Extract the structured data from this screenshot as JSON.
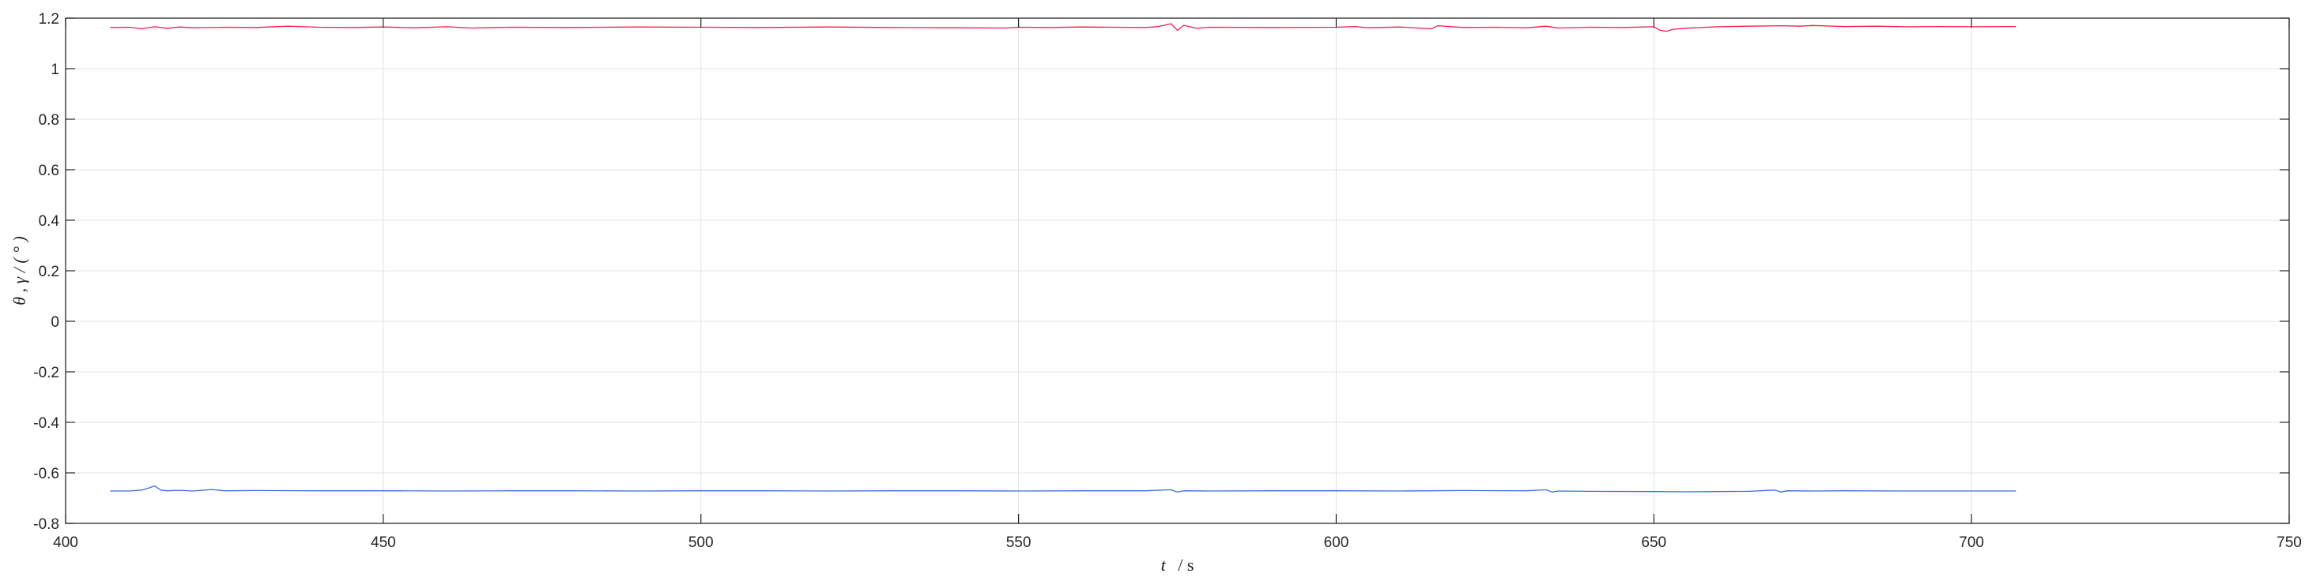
{
  "chart_data": {
    "type": "line",
    "xlabel": "t / s",
    "xlabel_var": "t",
    "xlabel_unit": "/ s",
    "ylabel": "θ , γ / ( ° )",
    "xlim": [
      400,
      750
    ],
    "ylim": [
      -0.8,
      1.2
    ],
    "xticks": [
      400,
      450,
      500,
      550,
      600,
      650,
      700,
      750
    ],
    "xtick_labels": [
      "400",
      "450",
      "500",
      "550",
      "600",
      "650",
      "700",
      "750"
    ],
    "yticks": [
      -0.8,
      -0.6,
      -0.4,
      -0.2,
      0,
      0.2,
      0.4,
      0.6,
      0.8,
      1,
      1.2
    ],
    "ytick_labels": [
      "-0.8",
      "-0.6",
      "-0.4",
      "-0.2",
      "0",
      "0.2",
      "0.4",
      "0.6",
      "0.8",
      "1",
      "1.2"
    ],
    "grid": true,
    "series": [
      {
        "color": "#ff1a4a",
        "x": [
          407,
          410,
          412,
          414,
          416,
          418,
          420,
          425,
          430,
          435,
          440,
          445,
          450,
          455,
          460,
          464,
          470,
          480,
          490,
          500,
          510,
          520,
          530,
          540,
          548,
          550,
          555,
          560,
          565,
          570,
          572,
          574,
          575,
          576,
          578,
          580,
          590,
          600,
          603,
          605,
          610,
          615,
          616,
          620,
          625,
          630,
          633,
          635,
          640,
          645,
          650,
          651,
          652,
          653,
          655,
          660,
          665,
          670,
          673,
          675,
          680,
          685,
          690,
          695,
          700,
          707
        ],
        "y": [
          1.163,
          1.164,
          1.158,
          1.166,
          1.16,
          1.165,
          1.162,
          1.164,
          1.163,
          1.168,
          1.164,
          1.163,
          1.165,
          1.162,
          1.166,
          1.161,
          1.164,
          1.163,
          1.165,
          1.164,
          1.163,
          1.165,
          1.163,
          1.162,
          1.161,
          1.164,
          1.163,
          1.165,
          1.164,
          1.163,
          1.167,
          1.178,
          1.152,
          1.172,
          1.16,
          1.164,
          1.163,
          1.164,
          1.167,
          1.162,
          1.165,
          1.158,
          1.17,
          1.163,
          1.164,
          1.162,
          1.168,
          1.161,
          1.164,
          1.163,
          1.166,
          1.152,
          1.148,
          1.156,
          1.16,
          1.166,
          1.168,
          1.17,
          1.168,
          1.171,
          1.167,
          1.168,
          1.166,
          1.167,
          1.166,
          1.167
        ]
      },
      {
        "color": "#3a6fd8",
        "x": [
          407,
          410,
          412,
          413,
          414,
          415,
          416,
          418,
          420,
          423,
          425,
          430,
          440,
          450,
          460,
          470,
          480,
          490,
          500,
          510,
          520,
          530,
          540,
          550,
          560,
          570,
          574,
          575,
          576,
          580,
          590,
          600,
          610,
          620,
          630,
          633,
          634,
          635,
          640,
          650,
          655,
          660,
          665,
          669,
          670,
          671,
          675,
          680,
          690,
          700,
          707
        ],
        "y": [
          -0.672,
          -0.672,
          -0.668,
          -0.661,
          -0.652,
          -0.668,
          -0.671,
          -0.669,
          -0.672,
          -0.666,
          -0.671,
          -0.67,
          -0.671,
          -0.671,
          -0.672,
          -0.671,
          -0.671,
          -0.672,
          -0.671,
          -0.671,
          -0.672,
          -0.671,
          -0.671,
          -0.672,
          -0.671,
          -0.671,
          -0.667,
          -0.676,
          -0.671,
          -0.672,
          -0.671,
          -0.671,
          -0.672,
          -0.67,
          -0.671,
          -0.667,
          -0.676,
          -0.672,
          -0.673,
          -0.674,
          -0.675,
          -0.674,
          -0.673,
          -0.668,
          -0.676,
          -0.671,
          -0.672,
          -0.671,
          -0.672,
          -0.672,
          -0.672
        ]
      }
    ]
  }
}
